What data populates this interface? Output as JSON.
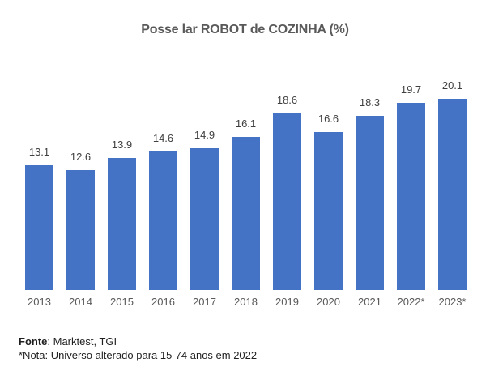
{
  "chart_data": {
    "type": "bar",
    "title": "Posse lar ROBOT de COZINHA (%)",
    "categories": [
      "2013",
      "2014",
      "2015",
      "2016",
      "2017",
      "2018",
      "2019",
      "2020",
      "2021",
      "2022*",
      "2023*"
    ],
    "values": [
      13.1,
      12.6,
      13.9,
      14.6,
      14.9,
      16.1,
      18.6,
      16.6,
      18.3,
      19.7,
      20.1
    ],
    "value_labels": [
      "13.1",
      "12.6",
      "13.9",
      "14.6",
      "14.9",
      "16.1",
      "18.6",
      "16.6",
      "18.3",
      "19.7",
      "20.1"
    ],
    "xlabel": "",
    "ylabel": "",
    "ylim": [
      0,
      22
    ],
    "grid": false,
    "legend": false,
    "bar_color": "#4472C4",
    "title_color": "#595959",
    "label_color": "#404040",
    "tick_color": "#595959"
  },
  "footer": {
    "source_label": "Fonte",
    "source_rest": ": Marktest, TGI",
    "note": "*Nota: Universo alterado para 15-74 anos em 2022"
  }
}
